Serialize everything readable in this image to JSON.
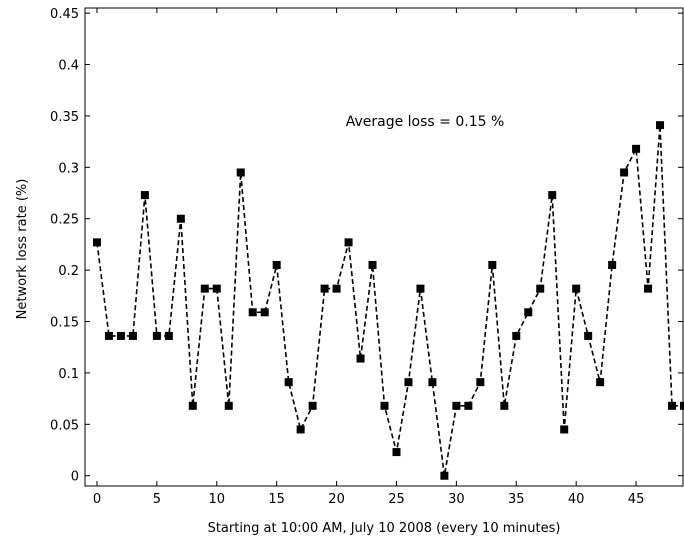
{
  "chart_data": {
    "type": "line",
    "xlabel": "Starting  at 10:00 AM, July 10 2008 (every 10 minutes)",
    "ylabel": "Network loss rate (%)",
    "annotation": "Average loss = 0.15 %",
    "xlim": [
      -1,
      49
    ],
    "ylim": [
      -0.01,
      0.455
    ],
    "x_ticks": [
      0,
      5,
      10,
      15,
      20,
      25,
      30,
      35,
      40,
      45
    ],
    "x_tick_labels": [
      "0",
      "5",
      "10",
      "15",
      "20",
      "25",
      "30",
      "35",
      "40",
      "45"
    ],
    "y_ticks": [
      0,
      0.05,
      0.1,
      0.15,
      0.2,
      0.25,
      0.3,
      0.35,
      0.4,
      0.45
    ],
    "y_tick_labels": [
      "0",
      "0.05",
      "0.1",
      "0.15",
      "0.2",
      "0.25",
      "0.3",
      "0.35",
      "0.4",
      "0.45"
    ],
    "grid": false,
    "series": [
      {
        "line_style": "dashed",
        "marker": "square",
        "color": "#000000",
        "x": [
          0,
          1,
          2,
          3,
          4,
          5,
          6,
          7,
          8,
          9,
          10,
          11,
          12,
          13,
          14,
          15,
          16,
          17,
          18,
          19,
          20,
          21,
          22,
          23,
          24,
          25,
          26,
          27,
          28,
          29,
          30,
          31,
          32,
          33,
          34,
          35,
          36,
          37,
          38,
          39,
          40,
          41,
          42,
          43,
          44,
          45,
          46,
          47,
          48,
          49
        ],
        "values": [
          0.227,
          0.136,
          0.136,
          0.136,
          0.273,
          0.136,
          0.136,
          0.25,
          0.068,
          0.182,
          0.182,
          0.068,
          0.295,
          0.159,
          0.159,
          0.205,
          0.091,
          0.045,
          0.068,
          0.182,
          0.182,
          0.227,
          0.114,
          0.205,
          0.068,
          0.023,
          0.091,
          0.182,
          0.091,
          0.0,
          0.068,
          0.068,
          0.091,
          0.205,
          0.068,
          0.136,
          0.159,
          0.182,
          0.273,
          0.045,
          0.182,
          0.136,
          0.091,
          0.205,
          0.295,
          0.318,
          0.182,
          0.341,
          0.068,
          0.068
        ]
      }
    ]
  }
}
